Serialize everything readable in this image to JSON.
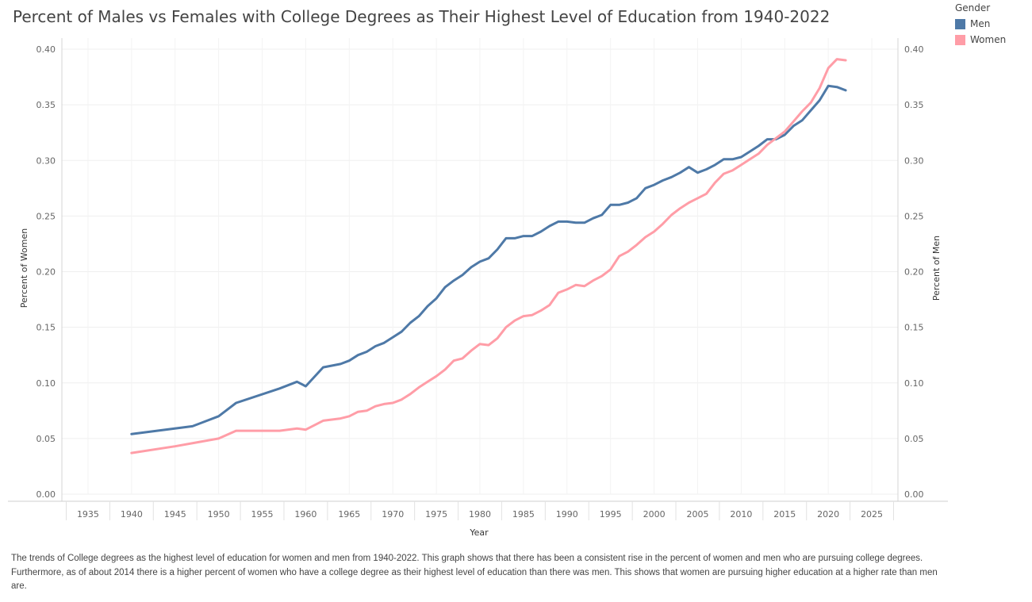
{
  "title": "Percent of Males vs Females with College Degrees as Their Highest Level of Education from 1940-2022",
  "legend": {
    "title": "Gender",
    "items": [
      {
        "label": "Men",
        "color": "#4e79a7"
      },
      {
        "label": "Women",
        "color": "#ff9da7"
      }
    ]
  },
  "caption": "The trends of College degrees as the highest  level of education for women and men from 1940-2022.  This graph shows that there has been a consistent rise in the percent of women and men who are pursuing college degrees. Furthermore, as of about 2014 there is a higher percent of women who have a college degree as their highest level of education than there was men. This shows that women are pursuing higher education at a higher rate than men are.",
  "chart_data": {
    "type": "line",
    "xlabel": "Year",
    "ylabel_left": "Percent of Women",
    "ylabel_right": "Percent of Men",
    "xlim": [
      1932,
      2028
    ],
    "ylim": [
      0,
      0.4
    ],
    "x_ticks": [
      1935,
      1940,
      1945,
      1950,
      1955,
      1960,
      1965,
      1970,
      1975,
      1980,
      1985,
      1990,
      1995,
      2000,
      2005,
      2010,
      2015,
      2020,
      2025
    ],
    "y_ticks": [
      "0.00",
      "0.05",
      "0.10",
      "0.15",
      "0.20",
      "0.25",
      "0.30",
      "0.35",
      "0.40"
    ],
    "grid": true,
    "legend_position": "top-right",
    "series": [
      {
        "name": "Men",
        "color": "#4e79a7",
        "points": [
          [
            1940,
            0.054
          ],
          [
            1947,
            0.061
          ],
          [
            1950,
            0.07
          ],
          [
            1952,
            0.082
          ],
          [
            1957,
            0.095
          ],
          [
            1959,
            0.101
          ],
          [
            1960,
            0.097
          ],
          [
            1962,
            0.114
          ],
          [
            1964,
            0.117
          ],
          [
            1965,
            0.12
          ],
          [
            1966,
            0.125
          ],
          [
            1967,
            0.128
          ],
          [
            1968,
            0.133
          ],
          [
            1969,
            0.136
          ],
          [
            1970,
            0.141
          ],
          [
            1971,
            0.146
          ],
          [
            1972,
            0.154
          ],
          [
            1973,
            0.16
          ],
          [
            1974,
            0.169
          ],
          [
            1975,
            0.176
          ],
          [
            1976,
            0.186
          ],
          [
            1977,
            0.192
          ],
          [
            1978,
            0.197
          ],
          [
            1979,
            0.204
          ],
          [
            1980,
            0.209
          ],
          [
            1981,
            0.212
          ],
          [
            1982,
            0.22
          ],
          [
            1983,
            0.23
          ],
          [
            1984,
            0.23
          ],
          [
            1985,
            0.232
          ],
          [
            1986,
            0.232
          ],
          [
            1987,
            0.236
          ],
          [
            1988,
            0.241
          ],
          [
            1989,
            0.245
          ],
          [
            1990,
            0.245
          ],
          [
            1991,
            0.244
          ],
          [
            1992,
            0.244
          ],
          [
            1993,
            0.248
          ],
          [
            1994,
            0.251
          ],
          [
            1995,
            0.26
          ],
          [
            1996,
            0.26
          ],
          [
            1997,
            0.262
          ],
          [
            1998,
            0.266
          ],
          [
            1999,
            0.275
          ],
          [
            2000,
            0.278
          ],
          [
            2001,
            0.282
          ],
          [
            2002,
            0.285
          ],
          [
            2003,
            0.289
          ],
          [
            2004,
            0.294
          ],
          [
            2005,
            0.289
          ],
          [
            2006,
            0.292
          ],
          [
            2007,
            0.296
          ],
          [
            2008,
            0.301
          ],
          [
            2009,
            0.301
          ],
          [
            2010,
            0.303
          ],
          [
            2011,
            0.308
          ],
          [
            2012,
            0.313
          ],
          [
            2013,
            0.319
          ],
          [
            2014,
            0.319
          ],
          [
            2015,
            0.323
          ],
          [
            2016,
            0.331
          ],
          [
            2017,
            0.336
          ],
          [
            2018,
            0.345
          ],
          [
            2019,
            0.354
          ],
          [
            2020,
            0.367
          ],
          [
            2021,
            0.366
          ],
          [
            2022,
            0.363
          ]
        ]
      },
      {
        "name": "Women",
        "color": "#ff9da7",
        "points": [
          [
            1940,
            0.037
          ],
          [
            1945,
            0.043
          ],
          [
            1950,
            0.05
          ],
          [
            1952,
            0.057
          ],
          [
            1957,
            0.057
          ],
          [
            1959,
            0.059
          ],
          [
            1960,
            0.058
          ],
          [
            1962,
            0.066
          ],
          [
            1964,
            0.068
          ],
          [
            1965,
            0.07
          ],
          [
            1966,
            0.074
          ],
          [
            1967,
            0.075
          ],
          [
            1968,
            0.079
          ],
          [
            1969,
            0.081
          ],
          [
            1970,
            0.082
          ],
          [
            1971,
            0.085
          ],
          [
            1972,
            0.09
          ],
          [
            1973,
            0.096
          ],
          [
            1974,
            0.101
          ],
          [
            1975,
            0.106
          ],
          [
            1976,
            0.112
          ],
          [
            1977,
            0.12
          ],
          [
            1978,
            0.122
          ],
          [
            1979,
            0.129
          ],
          [
            1980,
            0.135
          ],
          [
            1981,
            0.134
          ],
          [
            1982,
            0.14
          ],
          [
            1983,
            0.15
          ],
          [
            1984,
            0.156
          ],
          [
            1985,
            0.16
          ],
          [
            1986,
            0.161
          ],
          [
            1987,
            0.165
          ],
          [
            1988,
            0.17
          ],
          [
            1989,
            0.181
          ],
          [
            1990,
            0.184
          ],
          [
            1991,
            0.188
          ],
          [
            1992,
            0.187
          ],
          [
            1993,
            0.192
          ],
          [
            1994,
            0.196
          ],
          [
            1995,
            0.202
          ],
          [
            1996,
            0.214
          ],
          [
            1997,
            0.218
          ],
          [
            1998,
            0.224
          ],
          [
            1999,
            0.231
          ],
          [
            2000,
            0.236
          ],
          [
            2001,
            0.243
          ],
          [
            2002,
            0.251
          ],
          [
            2003,
            0.257
          ],
          [
            2004,
            0.262
          ],
          [
            2005,
            0.266
          ],
          [
            2006,
            0.27
          ],
          [
            2007,
            0.28
          ],
          [
            2008,
            0.288
          ],
          [
            2009,
            0.291
          ],
          [
            2010,
            0.296
          ],
          [
            2011,
            0.301
          ],
          [
            2012,
            0.306
          ],
          [
            2013,
            0.314
          ],
          [
            2014,
            0.32
          ],
          [
            2015,
            0.326
          ],
          [
            2016,
            0.335
          ],
          [
            2017,
            0.344
          ],
          [
            2018,
            0.352
          ],
          [
            2019,
            0.365
          ],
          [
            2020,
            0.383
          ],
          [
            2021,
            0.391
          ],
          [
            2022,
            0.39
          ]
        ]
      }
    ]
  }
}
